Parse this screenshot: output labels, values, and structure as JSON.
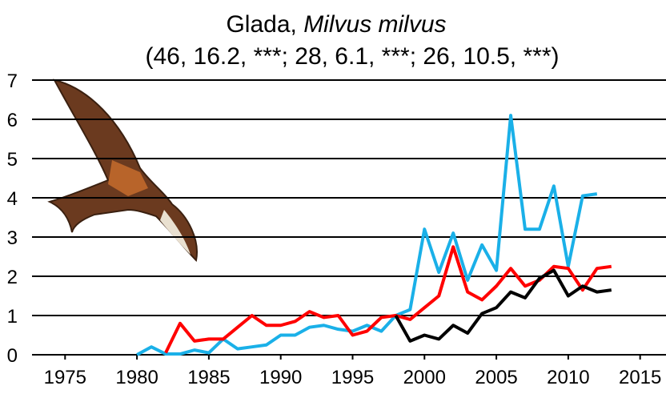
{
  "chart_data": {
    "type": "line",
    "title": {
      "common": "Glada,",
      "scientific": "Milvus milvus"
    },
    "subtitle": "(46, 16.2, ***; 28, 6.1, ***; 26, 10.5, ***)",
    "x": [
      1980,
      1981,
      1982,
      1983,
      1984,
      1985,
      1986,
      1987,
      1988,
      1989,
      1990,
      1991,
      1992,
      1993,
      1994,
      1995,
      1996,
      1997,
      1998,
      1999,
      2000,
      2001,
      2002,
      2003,
      2004,
      2005,
      2006,
      2007,
      2008,
      2009,
      2010,
      2011,
      2012,
      2013
    ],
    "series": [
      {
        "color": "#1ab0e8",
        "values": [
          0,
          0.2,
          0.02,
          0.02,
          0.12,
          0.05,
          0.4,
          0.15,
          0.2,
          0.25,
          0.5,
          0.5,
          0.7,
          0.75,
          0.65,
          0.6,
          0.75,
          0.6,
          1.0,
          1.15,
          3.2,
          2.1,
          3.1,
          1.9,
          2.8,
          2.15,
          6.1,
          3.2,
          3.2,
          4.3,
          2.25,
          4.05,
          4.1,
          null
        ]
      },
      {
        "color": "#ff0000",
        "values": [
          null,
          null,
          0.05,
          0.8,
          0.35,
          0.4,
          0.4,
          0.7,
          1.0,
          0.75,
          0.75,
          0.85,
          1.1,
          0.95,
          1.0,
          0.5,
          0.6,
          0.95,
          1.0,
          0.9,
          1.2,
          1.5,
          2.75,
          1.6,
          1.4,
          1.75,
          2.2,
          1.75,
          1.9,
          2.25,
          2.2,
          1.65,
          2.2,
          2.25
        ]
      },
      {
        "color": "#000000",
        "values": [
          null,
          null,
          null,
          null,
          null,
          null,
          null,
          null,
          null,
          null,
          null,
          null,
          null,
          null,
          null,
          null,
          null,
          null,
          1.0,
          0.35,
          0.5,
          0.4,
          0.75,
          0.55,
          1.05,
          1.2,
          1.6,
          1.45,
          1.95,
          2.15,
          1.5,
          1.75,
          1.6,
          1.65
        ]
      }
    ],
    "xlim": [
      1972.7,
      2016.8
    ],
    "xticks": [
      1975,
      1980,
      1985,
      1990,
      1995,
      2000,
      2005,
      2010,
      2015
    ],
    "ylim": [
      0,
      7
    ],
    "yticks": [
      0,
      1,
      2,
      3,
      4,
      5,
      6,
      7
    ],
    "grid": true
  }
}
